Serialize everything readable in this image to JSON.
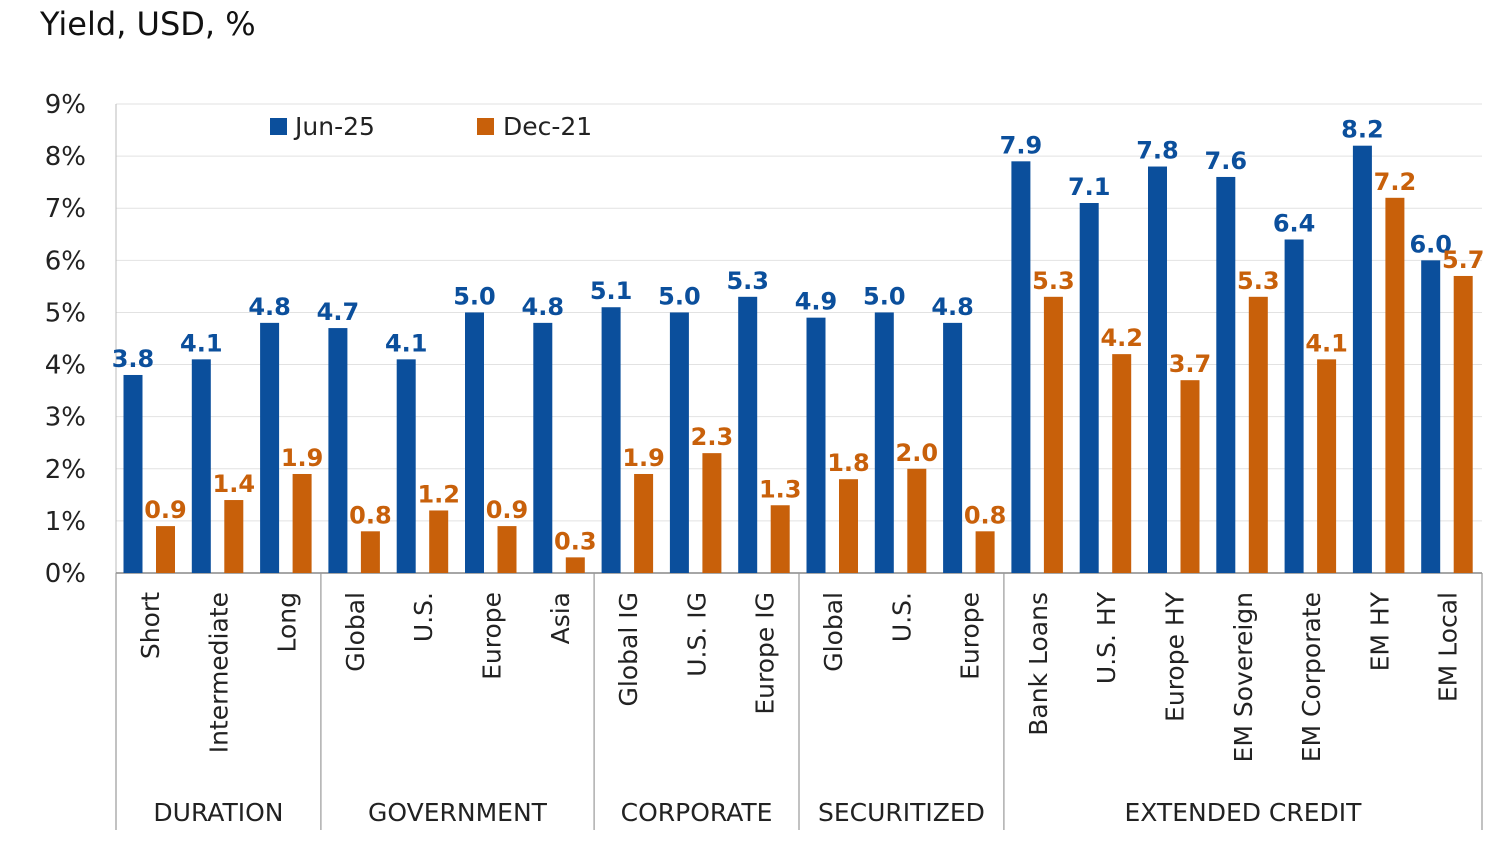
{
  "chart_data": {
    "type": "bar",
    "title": "Yield, USD, %",
    "xlabel": "",
    "ylabel": "",
    "ylim": [
      0,
      9
    ],
    "y_ticks": [
      "0%",
      "1%",
      "2%",
      "3%",
      "4%",
      "5%",
      "6%",
      "7%",
      "8%",
      "9%"
    ],
    "grid": true,
    "legend_position": "top-left",
    "categories": [
      "Short",
      "Intermediate",
      "Long",
      "Global",
      "U.S.",
      "Europe",
      "Asia",
      "Global IG",
      "U.S. IG",
      "Europe IG",
      "Global",
      "U.S.",
      "Europe",
      "Bank Loans",
      "U.S. HY",
      "Europe HY",
      "EM Sovereign",
      "EM Corporate",
      "EM HY",
      "EM Local"
    ],
    "groups": [
      {
        "label": "DURATION",
        "count": 3
      },
      {
        "label": "GOVERNMENT",
        "count": 4
      },
      {
        "label": "CORPORATE",
        "count": 3
      },
      {
        "label": "SECURITIZED",
        "count": 3
      },
      {
        "label": "EXTENDED CREDIT",
        "count": 7
      }
    ],
    "series": [
      {
        "name": "Jun-25",
        "color": "#0B4F9C",
        "values": [
          3.8,
          4.1,
          4.8,
          4.7,
          4.1,
          5.0,
          4.8,
          5.1,
          5.0,
          5.3,
          4.9,
          5.0,
          4.8,
          7.9,
          7.1,
          7.8,
          7.6,
          6.4,
          8.2,
          6.0
        ]
      },
      {
        "name": "Dec-21",
        "color": "#C8600A",
        "values": [
          0.9,
          1.4,
          1.9,
          0.8,
          1.2,
          0.9,
          0.3,
          1.9,
          2.3,
          1.3,
          1.8,
          2.0,
          0.8,
          5.3,
          4.2,
          3.7,
          5.3,
          4.1,
          7.2,
          5.7
        ]
      }
    ]
  }
}
